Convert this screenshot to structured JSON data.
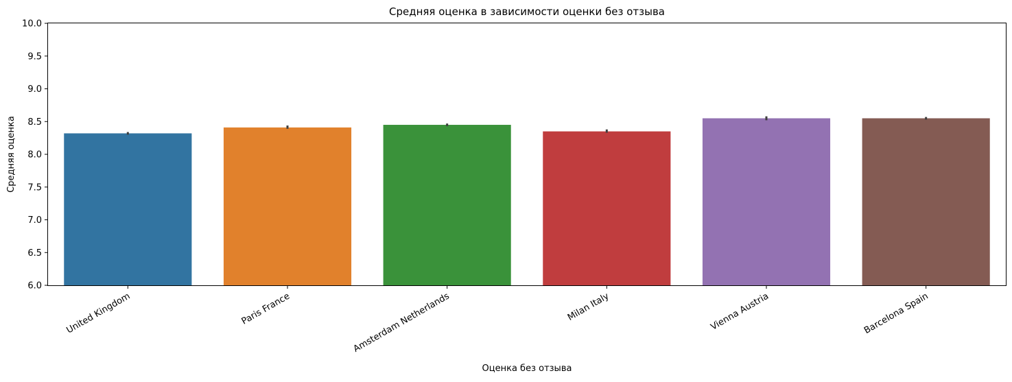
{
  "chart_data": {
    "type": "bar",
    "title": "Средняя оценка в зависимости оценки без отзыва",
    "xlabel": "Оценка без отзыва",
    "ylabel": "Средняя оценка",
    "ylim": [
      6.0,
      10.0
    ],
    "yticks": [
      "6.0",
      "6.5",
      "7.0",
      "7.5",
      "8.0",
      "8.5",
      "9.0",
      "9.5",
      "10.0"
    ],
    "categories": [
      "United Kingdom",
      "Paris France",
      "Amsterdam Netherlands",
      "Milan Italy",
      "Vienna Austria",
      "Barcelona Spain"
    ],
    "values": [
      8.32,
      8.41,
      8.45,
      8.35,
      8.55,
      8.55
    ],
    "error_low": [
      8.3,
      8.39,
      8.43,
      8.33,
      8.52,
      8.53
    ],
    "error_high": [
      8.34,
      8.44,
      8.47,
      8.38,
      8.58,
      8.57
    ],
    "colors": [
      "#3274a1",
      "#e1812c",
      "#3a923a",
      "#c03d3e",
      "#9372b2",
      "#845b53"
    ],
    "grid": false,
    "legend": "none"
  }
}
